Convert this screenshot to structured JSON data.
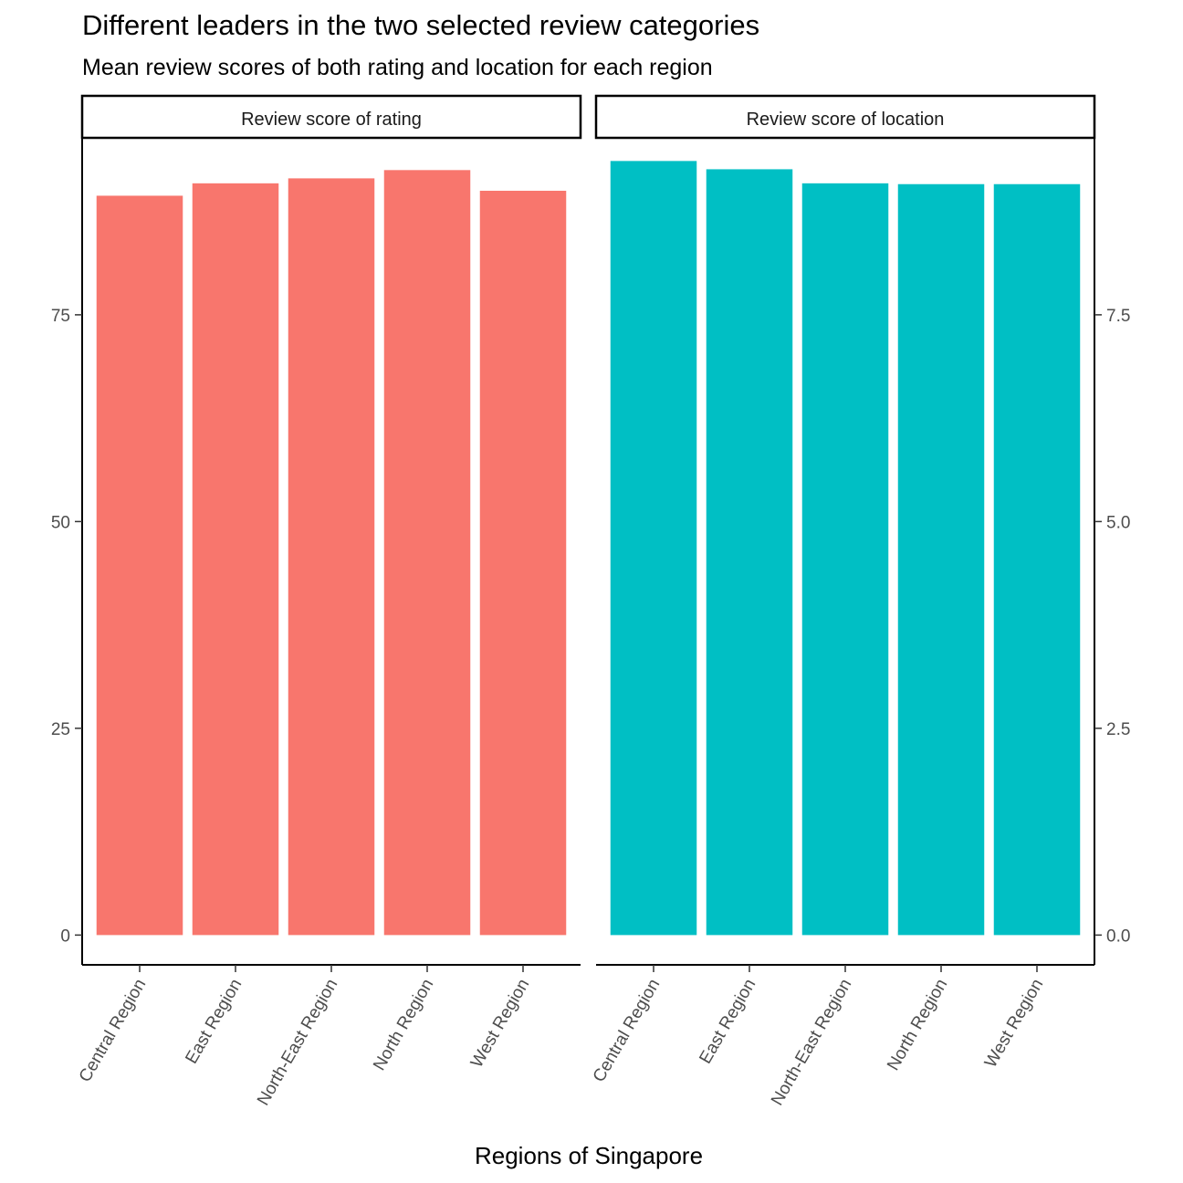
{
  "title": "Different leaders in the two selected review categories",
  "subtitle": "Mean review scores of both rating and location for each region",
  "xlabel": "Regions of Singapore",
  "chart_data": {
    "type": "bar",
    "title": "Different leaders in the two selected review categories",
    "subtitle": "Mean review scores of both rating and location for each region",
    "xlabel": "Regions of Singapore",
    "ylabel": "",
    "facets": [
      {
        "label": "Review score of rating",
        "color": "#F8766D",
        "categories": [
          "Central Region",
          "East Region",
          "North-East Region",
          "North Region",
          "West Region"
        ],
        "values": [
          89.4,
          90.9,
          91.5,
          92.5,
          90.0
        ],
        "ylim": [
          -3.6,
          96.4
        ],
        "yticks": [
          0,
          25,
          50,
          75
        ],
        "ytick_labels": [
          "0",
          "25",
          "50",
          "75"
        ],
        "axis_side": "left"
      },
      {
        "label": "Review score of location",
        "color": "#00BFC4",
        "categories": [
          "Central Region",
          "East Region",
          "North-East Region",
          "North Region",
          "West Region"
        ],
        "values": [
          9.36,
          9.26,
          9.09,
          9.08,
          9.08
        ],
        "ylim": [
          -0.36,
          9.64
        ],
        "yticks": [
          0,
          2.5,
          5,
          7.5
        ],
        "ytick_labels": [
          "0.0",
          "2.5",
          "5.0",
          "7.5"
        ],
        "axis_side": "right"
      }
    ],
    "grid": false,
    "legend": "none"
  }
}
